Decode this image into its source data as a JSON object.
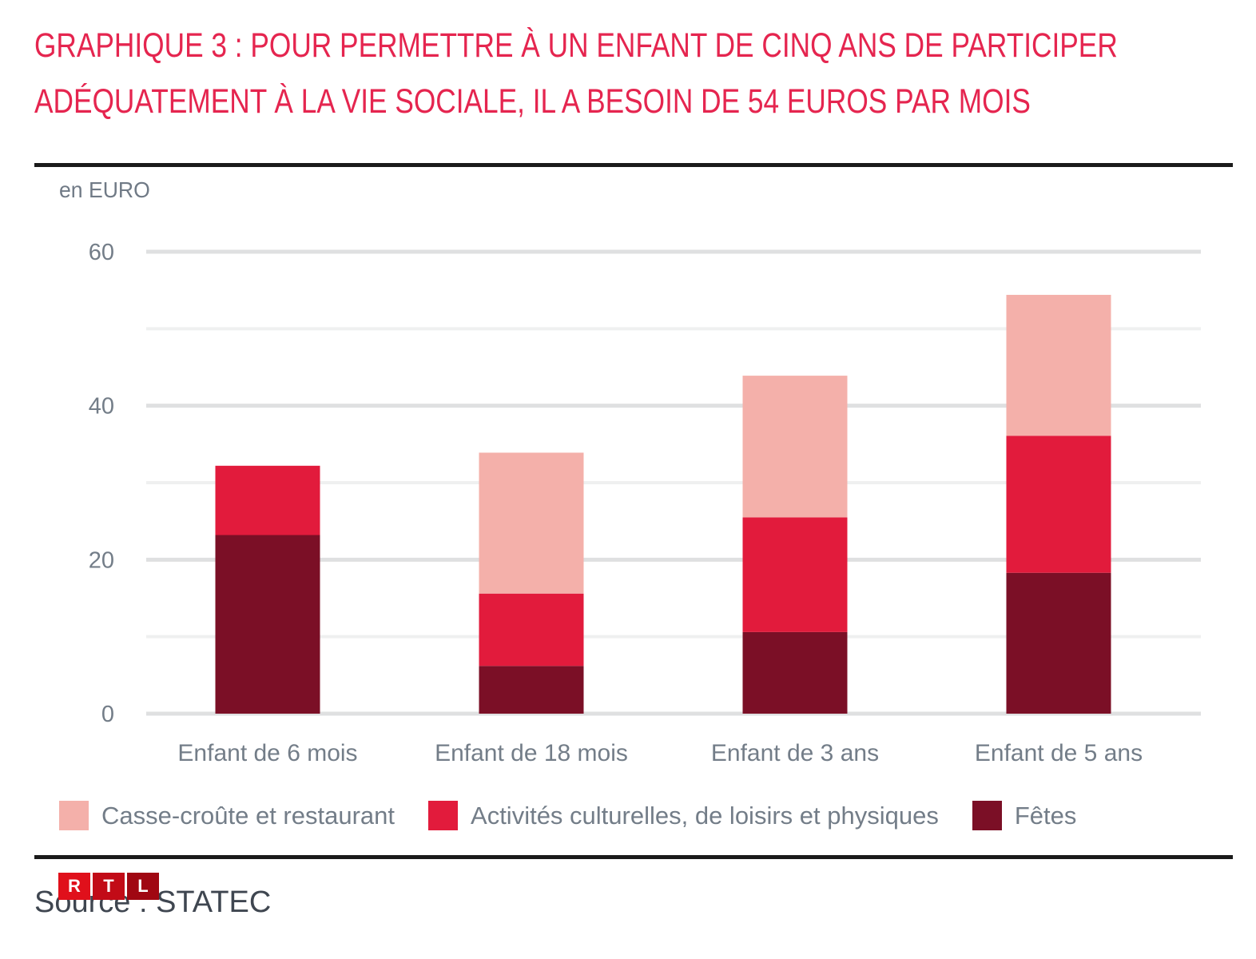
{
  "title_lines": [
    "GRAPHIQUE 3 : POUR PERMETTRE À UN ENFANT DE CINQ ANS DE PARTICIPER",
    "ADÉQUATEMENT À LA VIE SOCIALE, IL A BESOIN DE 54 EUROS PAR MOIS"
  ],
  "colors": {
    "title": "#e5254f",
    "casse_croute": "#f4b0aa",
    "activites": "#e21b3c",
    "fetes": "#7b0f26",
    "grid_major": "#dfe0e1",
    "grid_minor": "#eff0f0"
  },
  "footer": {
    "logo_letters": [
      "R",
      "T",
      "L"
    ],
    "logo_colors": [
      "#e0101b",
      "#c20b17",
      "#a00712"
    ],
    "source": "Source : STATEC"
  },
  "chart_data": {
    "type": "bar",
    "stacked": true,
    "title": "GRAPHIQUE 3 : POUR PERMETTRE À UN ENFANT DE CINQ ANS DE PARTICIPER ADÉQUATEMENT À LA VIE SOCIALE, IL A BESOIN DE 54 EUROS PAR MOIS",
    "ylabel": "en EURO",
    "xlabel": "",
    "ylim": [
      0,
      60
    ],
    "yticks": [
      0,
      20,
      40,
      60
    ],
    "minor_gridlines": [
      10,
      30,
      50
    ],
    "grid": true,
    "legend_position": "bottom",
    "categories": [
      "Enfant de 6 mois",
      "Enfant de 18 mois",
      "Enfant de 3 ans",
      "Enfant de 5 ans"
    ],
    "series": [
      {
        "name": "Fêtes",
        "color": "#7b0f26",
        "values": [
          23.2,
          6.2,
          10.6,
          18.3
        ]
      },
      {
        "name": "Activités culturelles, de loisirs et physiques",
        "color": "#e21b3c",
        "values": [
          9.0,
          9.4,
          14.9,
          17.8
        ]
      },
      {
        "name": "Casse-croûte et restaurant",
        "color": "#f4b0aa",
        "values": [
          0,
          18.3,
          18.4,
          18.3
        ]
      }
    ],
    "legend_order": [
      "Casse-croûte et restaurant",
      "Activités culturelles, de loisirs et physiques",
      "Fêtes"
    ]
  }
}
